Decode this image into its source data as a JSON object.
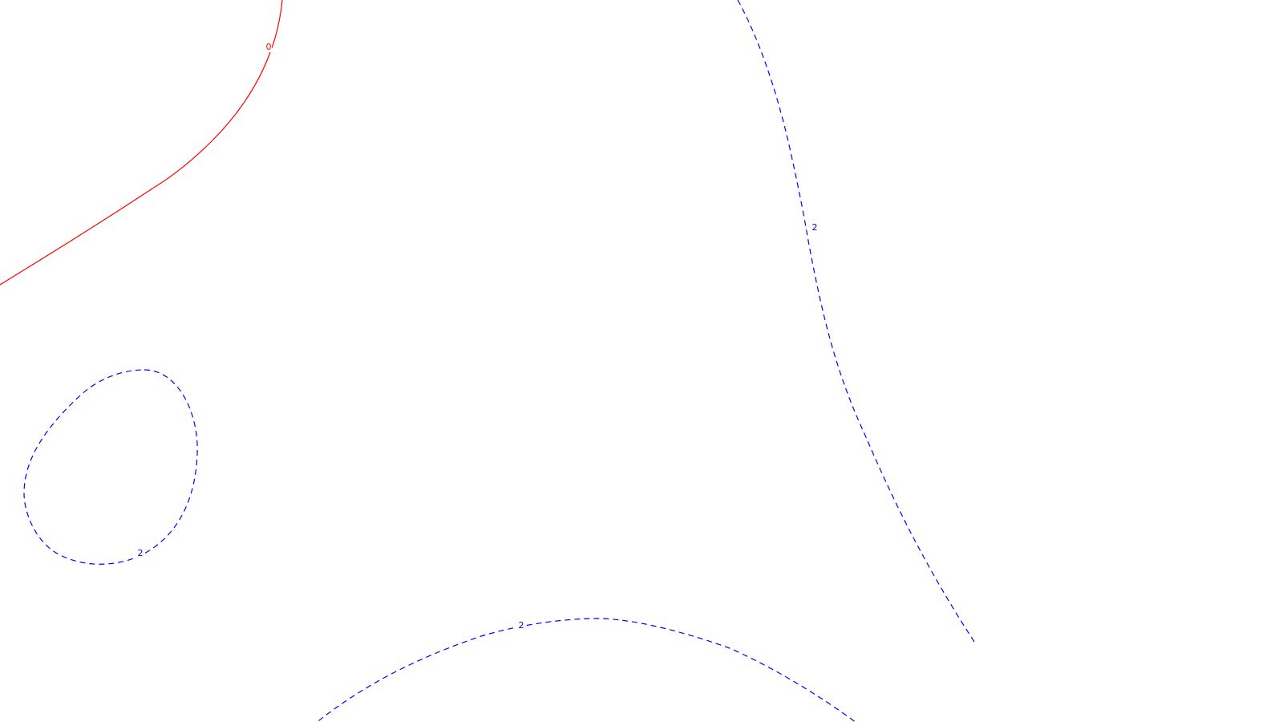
{
  "chart_data": {
    "type": "contour",
    "title": "",
    "xlabel": "",
    "ylabel": "",
    "grid": false,
    "legend": "none",
    "contours": [
      {
        "level": 0,
        "label": "0",
        "color": "#ff0000",
        "style": "solid"
      },
      {
        "level": 2,
        "label": "2",
        "color": "#0000ff",
        "style": "dashed"
      },
      {
        "level": 2,
        "label": "2",
        "color": "#0000ff",
        "style": "dashed"
      },
      {
        "level": 2,
        "label": "2",
        "color": "#0000ff",
        "style": "dashed"
      }
    ]
  }
}
